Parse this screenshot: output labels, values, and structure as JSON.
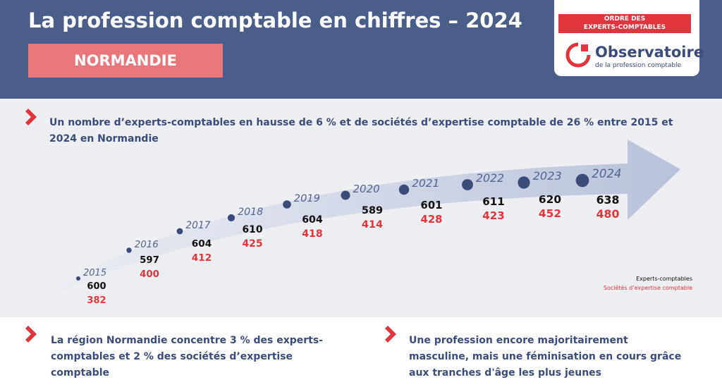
{
  "header": {
    "title": "La profession comptable en chiffres – 2024",
    "region": "NORMANDIE",
    "logo": {
      "ordre": [
        "ORDRE DES",
        "EXPERTS-COMPTABLES"
      ],
      "name": "Observatoire",
      "subtitle": "de la profession comptable"
    }
  },
  "section": {
    "heading": "Un nombre d’experts-comptables en hausse de 6 % et de sociétés d’expertise comptable de 26 % entre 2015 et 2024 en Normandie"
  },
  "timeline": {
    "years": [
      "2015",
      "2016",
      "2017",
      "2018",
      "2019",
      "2020",
      "2021",
      "2022",
      "2023",
      "2024"
    ],
    "experts": [
      600,
      597,
      604,
      610,
      604,
      589,
      601,
      611,
      620,
      638
    ],
    "societes": [
      382,
      400,
      412,
      425,
      418,
      414,
      428,
      423,
      452,
      480
    ],
    "legend": [
      "Experts-comptables",
      "Sociétés d’expertise comptable"
    ]
  },
  "footer": {
    "left": "La région Normandie concentre 3 % des experts-comptables et 2 % des sociétés d’expertise comptable",
    "right": "Une profession encore majoritairement masculine, mais une féminisation en cours grâce aux tranches d'âge les plus jeunes"
  }
}
